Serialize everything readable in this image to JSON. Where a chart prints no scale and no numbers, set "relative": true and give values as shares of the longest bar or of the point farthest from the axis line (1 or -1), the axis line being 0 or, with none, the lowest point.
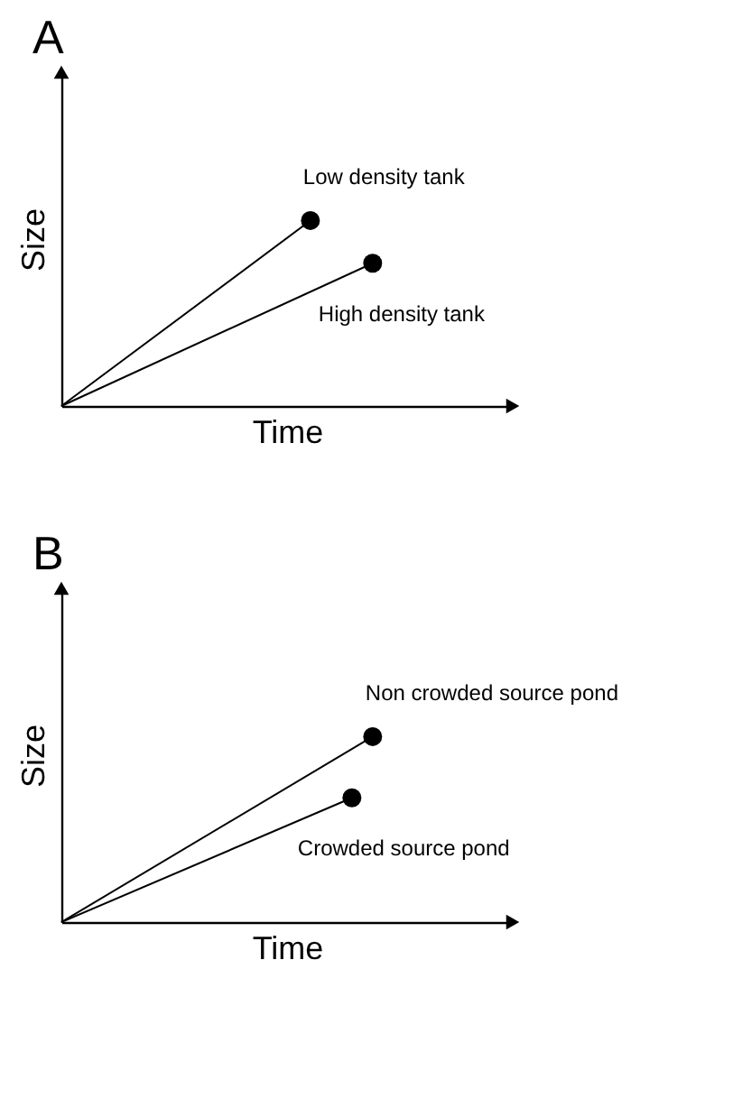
{
  "chart_data": [
    {
      "type": "line",
      "title": "A",
      "xlabel": "Time",
      "ylabel": "Size",
      "relative": true,
      "tick_labels": false,
      "marker": "circle",
      "legend": false,
      "categories": [
        null,
        null,
        null,
        null,
        null,
        null,
        null,
        null,
        null,
        null,
        null,
        null,
        null,
        null,
        null,
        null
      ],
      "series": [
        {
          "name": "Low density tank",
          "color": "#000000",
          "values": [
            0,
            null,
            null,
            null,
            null,
            null,
            null,
            null,
            null,
            null,
            null,
            null,
            1,
            null,
            null,
            null
          ]
        },
        {
          "name": "High density tank",
          "color": "#000000",
          "values": [
            0,
            null,
            null,
            null,
            null,
            null,
            null,
            null,
            null,
            null,
            null,
            null,
            null,
            null,
            null,
            0.77
          ]
        }
      ]
    },
    {
      "type": "line",
      "title": "B",
      "xlabel": "Time",
      "ylabel": "Size",
      "relative": true,
      "tick_labels": false,
      "marker": "circle",
      "legend": false,
      "categories": [
        null,
        null,
        null,
        null,
        null,
        null,
        null,
        null,
        null,
        null,
        null,
        null,
        null,
        null,
        null,
        null
      ],
      "series": [
        {
          "name": "Non crowded source pond",
          "color": "#000000",
          "values": [
            0,
            null,
            null,
            null,
            null,
            null,
            null,
            null,
            null,
            null,
            null,
            null,
            null,
            null,
            null,
            1
          ]
        },
        {
          "name": "Crowded source pond",
          "color": "#000000",
          "values": [
            0,
            null,
            null,
            null,
            null,
            null,
            null,
            null,
            null,
            null,
            null,
            null,
            null,
            null,
            0.67,
            null
          ]
        }
      ]
    }
  ]
}
